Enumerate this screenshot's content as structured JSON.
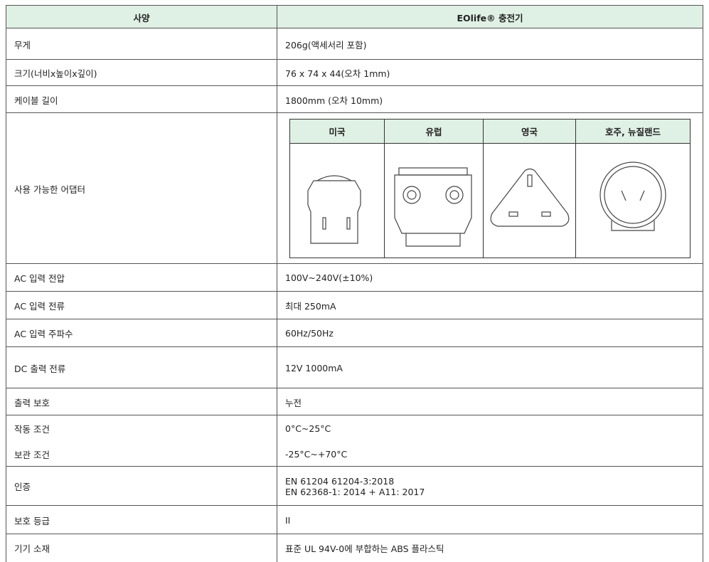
{
  "table": {
    "header": [
      "사양",
      "EOlife® 충전기"
    ],
    "rows": [
      {
        "label": "무게",
        "value": [
          "206g(액세서리 포함)"
        ]
      },
      {
        "label": "크기(너비x높이x깊이)",
        "value": [
          "76 x 74 x 44(오차 1mm)"
        ]
      },
      {
        "label": "케이블 길이",
        "value": [
          "1800mm (오차 10mm)"
        ]
      },
      {
        "label": "사용 가능한 어댑터",
        "adapters": [
          "미국",
          "유럽",
          "영국",
          "호주, 뉴질랜드"
        ]
      },
      {
        "label": "AC 입력 전압",
        "value": [
          "100V~240V(±10%)"
        ]
      },
      {
        "label": "AC 입력 전류",
        "value": [
          "최대 250mA"
        ]
      },
      {
        "label": "AC 입력 주파수",
        "value": [
          "60Hz/50Hz"
        ]
      },
      {
        "label": "DC 출력 전류",
        "value": [
          "12V 1000mA"
        ]
      },
      {
        "label": "출력 보호",
        "value": [
          "누전"
        ]
      },
      {
        "label": "작동 조건",
        "value": [
          "0°C~25°C"
        ]
      },
      {
        "label": "보관 조건",
        "value": [
          "-25°C~+70°C"
        ]
      },
      {
        "label": "인증",
        "value": [
          "EN 61204 61204-3:2018",
          "EN 62368-1: 2014 + A11: 2017"
        ]
      },
      {
        "label": "보호 등급",
        "value": [
          "II"
        ]
      },
      {
        "label": "기기 소재",
        "value": [
          "표준 UL 94V-0에 부합하는 ABS 플라스틱"
        ]
      }
    ]
  }
}
